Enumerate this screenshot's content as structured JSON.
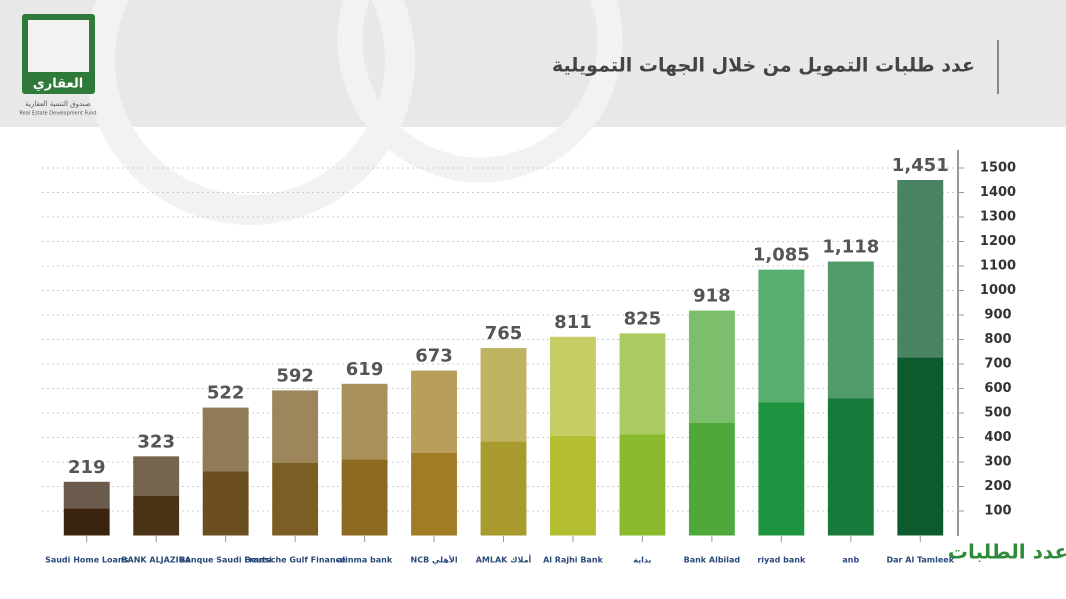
{
  "header": {
    "logo_name": "العقاري",
    "logo_subtitle": "صندوق التنمية العقارية",
    "logo_english": "Real Estate Development Fund"
  },
  "chart_data": {
    "type": "bar",
    "title": "عدد طلبات التمويل من خلال الجهات التمويلية",
    "y_label": "عدد الطلبات",
    "categories": [
      "Saudi Home Loans",
      "BANK ALJAZIRA",
      "Banque Saudi Fransi",
      "Deutsche Gulf Finance",
      "alinma bank",
      "NCB الأهلي",
      "AMLAK أملاك",
      "Al Rajhi Bank",
      "بداية",
      "Bank Albilad",
      "riyad bank",
      "anb",
      "Dar Al Tamleek"
    ],
    "values": [
      219,
      323,
      522,
      592,
      619,
      673,
      765,
      811,
      825,
      918,
      1085,
      1118,
      1451
    ],
    "value_labels": [
      "219",
      "323",
      "522",
      "592",
      "619",
      "673",
      "765",
      "811",
      "825",
      "918",
      "1,085",
      "1,118",
      "1,451"
    ],
    "colors": [
      "#3a2410",
      "#4a3314",
      "#6b4e1f",
      "#7c5e25",
      "#8d6a22",
      "#a07c24",
      "#a89a2c",
      "#b3bd30",
      "#8cba2e",
      "#4fa83a",
      "#1f9440",
      "#177a3a",
      "#0d5a2d"
    ],
    "ylim": [
      0,
      1550
    ],
    "yticks": [
      100,
      200,
      300,
      400,
      500,
      600,
      700,
      800,
      900,
      1000,
      1100,
      1200,
      1300,
      1400,
      1500
    ],
    "grid": true
  }
}
